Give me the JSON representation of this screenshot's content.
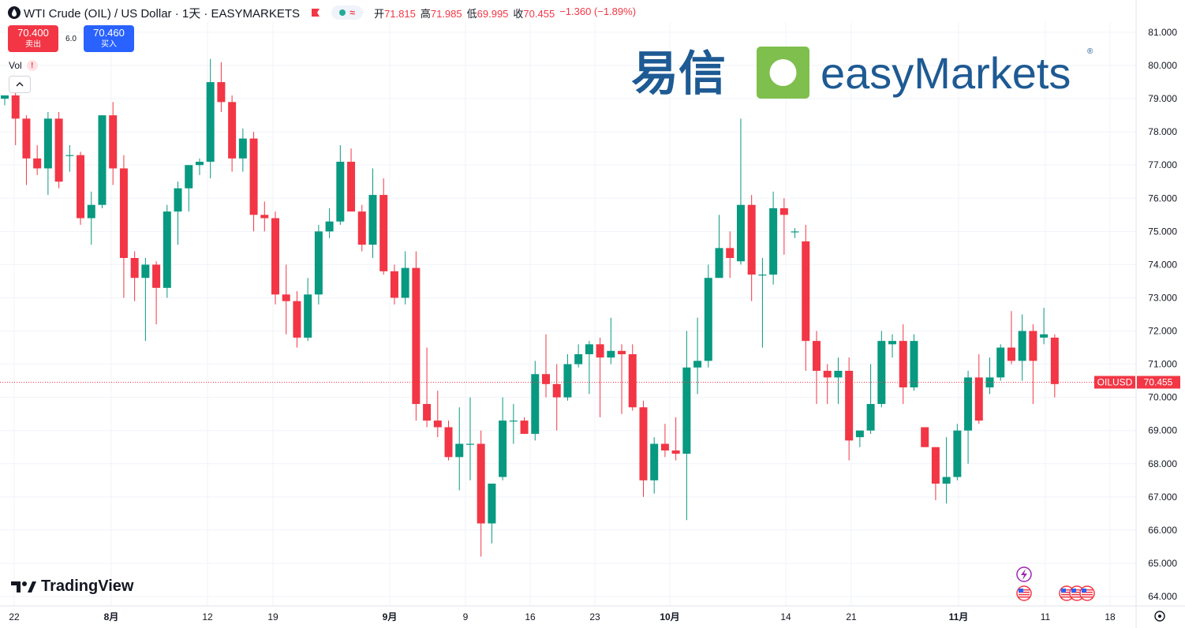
{
  "header": {
    "title": "WTI Crude (OIL) / US Dollar · 1天 · EASYMARKETS",
    "ohlc": [
      {
        "label": "开",
        "value": "71.815"
      },
      {
        "label": "高",
        "value": "71.985"
      },
      {
        "label": "低",
        "value": "69.995"
      },
      {
        "label": "收",
        "value": "70.455"
      }
    ],
    "change": "−1.360 (−1.89%)",
    "status_icon": "market-open-dot",
    "wave_symbol": "≈"
  },
  "trade": {
    "sell_price": "70.400",
    "sell_label": "卖出",
    "spread": "6.0",
    "buy_price": "70.460",
    "buy_label": "买入"
  },
  "volume": {
    "label": "Vol",
    "warning": "!"
  },
  "logo": {
    "cn": "易信",
    "en": "easyMarkets",
    "mark": "®"
  },
  "brand": {
    "name": "TradingView"
  },
  "price_tag": {
    "symbol": "OILUSD",
    "price": "70.455",
    "value": 70.455
  },
  "colors": {
    "up": "#089981",
    "down": "#f23645",
    "accent": "#2962ff",
    "logo_blue": "#1e5a93",
    "logo_green": "#7fbf4d"
  },
  "chart_data": {
    "type": "candlestick",
    "y_axis": {
      "ticks": [
        "64.000",
        "65.000",
        "66.000",
        "67.000",
        "68.000",
        "69.000",
        "70.000",
        "71.000",
        "72.000",
        "73.000",
        "74.000",
        "75.000",
        "76.000",
        "77.000",
        "78.000",
        "79.000",
        "80.000",
        "81.000"
      ],
      "range": [
        63.6,
        81.3
      ]
    },
    "x_axis": {
      "labels": [
        "22",
        "8月",
        "12",
        "19",
        "9月",
        "9",
        "16",
        "23",
        "10月",
        "14",
        "21",
        "11月",
        "11",
        "18"
      ]
    },
    "candles": [
      [
        79.0,
        79.1,
        78.8,
        79.1
      ],
      [
        79.1,
        79.3,
        77.6,
        78.4
      ],
      [
        78.4,
        78.5,
        76.4,
        77.2
      ],
      [
        77.2,
        77.6,
        76.7,
        76.9
      ],
      [
        76.9,
        78.6,
        76.1,
        78.4
      ],
      [
        78.4,
        78.6,
        76.3,
        76.5
      ],
      [
        77.3,
        77.6,
        76.8,
        77.3
      ],
      [
        77.3,
        77.4,
        75.2,
        75.4
      ],
      [
        75.4,
        76.2,
        74.6,
        75.8
      ],
      [
        75.8,
        78.5,
        75.7,
        78.5
      ],
      [
        78.5,
        78.9,
        76.4,
        76.9
      ],
      [
        76.9,
        77.3,
        73.0,
        74.2
      ],
      [
        74.2,
        74.4,
        72.9,
        73.6
      ],
      [
        73.6,
        74.2,
        71.7,
        74.0
      ],
      [
        74.0,
        74.1,
        72.2,
        73.3
      ],
      [
        73.3,
        75.8,
        73.0,
        75.6
      ],
      [
        75.6,
        76.5,
        74.6,
        76.3
      ],
      [
        76.3,
        77.0,
        75.6,
        77.0
      ],
      [
        77.0,
        77.2,
        76.7,
        77.1
      ],
      [
        77.1,
        80.2,
        76.6,
        79.5
      ],
      [
        79.5,
        80.1,
        78.6,
        78.9
      ],
      [
        78.9,
        79.1,
        76.8,
        77.2
      ],
      [
        77.2,
        78.1,
        76.8,
        77.8
      ],
      [
        77.8,
        78.0,
        75.0,
        75.5
      ],
      [
        75.5,
        75.9,
        75.0,
        75.4
      ],
      [
        75.4,
        75.6,
        72.8,
        73.1
      ],
      [
        73.1,
        74.0,
        71.9,
        72.9
      ],
      [
        72.9,
        73.2,
        71.5,
        71.8
      ],
      [
        71.8,
        73.6,
        71.7,
        73.1
      ],
      [
        73.1,
        75.2,
        72.8,
        75.0
      ],
      [
        75.0,
        75.7,
        74.8,
        75.3
      ],
      [
        75.3,
        77.6,
        75.2,
        77.1
      ],
      [
        77.1,
        77.5,
        75.7,
        75.6
      ],
      [
        75.6,
        75.8,
        74.4,
        74.6
      ],
      [
        74.6,
        76.9,
        74.2,
        76.1
      ],
      [
        76.1,
        76.6,
        73.7,
        73.8
      ],
      [
        73.8,
        74.0,
        72.8,
        73.0
      ],
      [
        73.0,
        74.4,
        72.8,
        73.9
      ],
      [
        73.9,
        74.4,
        69.3,
        69.8
      ],
      [
        69.8,
        71.5,
        69.1,
        69.3
      ],
      [
        69.3,
        70.2,
        68.8,
        69.1
      ],
      [
        69.1,
        69.3,
        68.1,
        68.2
      ],
      [
        68.2,
        69.7,
        67.2,
        68.6
      ],
      [
        68.6,
        70.0,
        67.5,
        68.6
      ],
      [
        68.6,
        69.0,
        65.2,
        66.2
      ],
      [
        66.2,
        67.3,
        65.6,
        67.4
      ],
      [
        67.6,
        70.0,
        67.5,
        69.3
      ],
      [
        69.3,
        69.8,
        68.6,
        69.3
      ],
      [
        69.3,
        69.4,
        68.9,
        68.9
      ],
      [
        68.9,
        71.1,
        68.7,
        70.7
      ],
      [
        70.7,
        71.9,
        70.0,
        70.4
      ],
      [
        70.4,
        71.0,
        69.0,
        70.0
      ],
      [
        70.0,
        71.3,
        69.9,
        71.0
      ],
      [
        71.0,
        71.6,
        70.9,
        71.3
      ],
      [
        71.3,
        71.7,
        70.1,
        71.6
      ],
      [
        71.6,
        71.8,
        69.4,
        71.2
      ],
      [
        71.2,
        72.4,
        71.0,
        71.4
      ],
      [
        71.4,
        71.6,
        69.5,
        71.3
      ],
      [
        71.3,
        71.6,
        69.6,
        69.7
      ],
      [
        69.7,
        69.9,
        67.0,
        67.5
      ],
      [
        67.5,
        68.8,
        67.1,
        68.6
      ],
      [
        68.6,
        69.2,
        68.2,
        68.4
      ],
      [
        68.4,
        69.4,
        68.1,
        68.3
      ],
      [
        68.3,
        72.0,
        66.3,
        70.9
      ],
      [
        70.9,
        72.4,
        70.1,
        71.1
      ],
      [
        71.1,
        74.0,
        70.9,
        73.6
      ],
      [
        73.6,
        75.5,
        73.6,
        74.5
      ],
      [
        74.5,
        75.0,
        73.6,
        74.2
      ],
      [
        74.1,
        78.4,
        74.0,
        75.8
      ],
      [
        75.8,
        76.1,
        72.9,
        73.7
      ],
      [
        73.7,
        74.2,
        71.5,
        73.7
      ],
      [
        73.7,
        76.2,
        73.4,
        75.7
      ],
      [
        75.7,
        76.0,
        74.3,
        75.5
      ],
      [
        75.0,
        75.1,
        74.8,
        75.0
      ],
      [
        74.7,
        75.2,
        70.8,
        71.7
      ],
      [
        71.7,
        72.0,
        69.8,
        70.8
      ],
      [
        70.8,
        71.0,
        69.8,
        70.6
      ],
      [
        70.6,
        71.2,
        69.8,
        70.8
      ],
      [
        70.8,
        71.2,
        68.1,
        68.7
      ],
      [
        68.8,
        69.0,
        68.5,
        69.0
      ],
      [
        69.0,
        71.0,
        68.9,
        69.8
      ],
      [
        69.8,
        72.0,
        69.7,
        71.7
      ],
      [
        71.6,
        71.9,
        71.2,
        71.7
      ],
      [
        71.7,
        72.2,
        69.8,
        70.3
      ],
      [
        70.3,
        71.9,
        70.2,
        71.7
      ],
      [
        69.1,
        69.1,
        68.5,
        68.5
      ],
      [
        68.5,
        68.5,
        66.9,
        67.4
      ],
      [
        67.4,
        68.8,
        66.8,
        67.6
      ],
      [
        67.6,
        69.2,
        67.5,
        69.0
      ],
      [
        69.0,
        70.8,
        68.0,
        70.6
      ],
      [
        70.6,
        71.3,
        69.2,
        69.3
      ],
      [
        70.3,
        71.2,
        70.1,
        70.6
      ],
      [
        70.6,
        71.6,
        70.5,
        71.5
      ],
      [
        71.5,
        72.6,
        71.0,
        71.1
      ],
      [
        71.1,
        72.5,
        70.5,
        72.0
      ],
      [
        72.0,
        72.2,
        69.8,
        71.1
      ],
      [
        71.8,
        72.7,
        71.6,
        71.9
      ],
      [
        71.8,
        71.9,
        70.0,
        70.4
      ]
    ]
  },
  "x_label_positions": [
    18,
    141,
    263,
    346,
    494,
    590,
    672,
    754,
    849,
    996,
    1079,
    1215,
    1325,
    1407
  ],
  "event_icons": {
    "lightning": "lightning-icon",
    "flag": "us-flag-icon"
  }
}
